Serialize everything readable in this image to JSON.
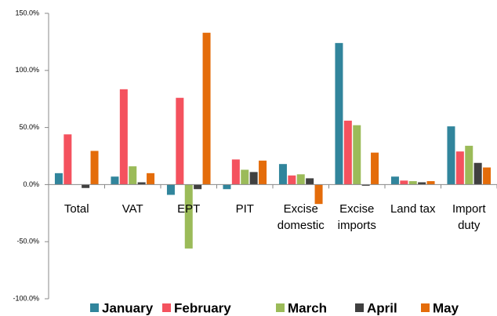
{
  "chart_data": {
    "type": "bar",
    "categories": [
      "Total",
      "VAT",
      "EPT",
      "PIT",
      "Excise domestic",
      "Excise imports",
      "Land tax",
      "Import duty"
    ],
    "series": [
      {
        "name": "January",
        "color": "#31859c",
        "values": [
          10,
          7,
          -9,
          -4,
          18,
          124,
          7,
          51
        ]
      },
      {
        "name": "February",
        "color": "#f4525e",
        "values": [
          44,
          83.5,
          76,
          22,
          8,
          56,
          3.5,
          29
        ]
      },
      {
        "name": "March",
        "color": "#9bbb59",
        "values": [
          0,
          16,
          -56,
          13,
          9,
          52,
          3,
          34
        ]
      },
      {
        "name": "April",
        "color": "#404040",
        "values": [
          -3,
          2,
          -4,
          11,
          5.5,
          -1,
          2,
          19
        ]
      },
      {
        "name": "May",
        "color": "#e46c0a",
        "values": [
          29.5,
          10,
          133,
          21,
          -17,
          28,
          3,
          15
        ]
      }
    ],
    "ylim": [
      -100,
      150
    ],
    "yticks": [
      {
        "value": -100,
        "label": "-100.0%"
      },
      {
        "value": -50,
        "label": "-50.0%"
      },
      {
        "value": 0,
        "label": "0.0%"
      },
      {
        "value": 50,
        "label": "50.0%"
      },
      {
        "value": 100,
        "label": "100.0%"
      },
      {
        "value": 150,
        "label": "150.0%"
      }
    ],
    "legend": "bottom"
  }
}
